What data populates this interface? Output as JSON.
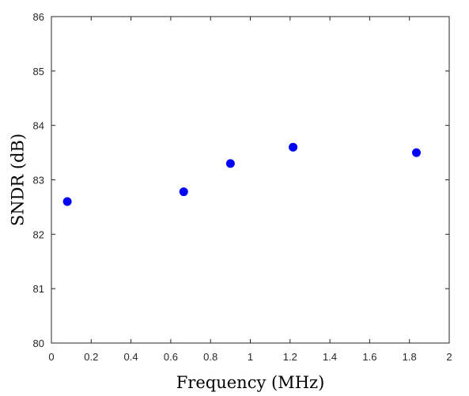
{
  "chart_data": {
    "type": "scatter",
    "title": "",
    "xlabel": "Frequency (MHz)",
    "ylabel": "SNDR (dB)",
    "xlim": [
      0,
      2
    ],
    "ylim": [
      80,
      86
    ],
    "xticks": [
      "0",
      "0.2",
      "0.4",
      "0.6",
      "0.8",
      "1",
      "1.2",
      "1.4",
      "1.6",
      "1.8",
      "2"
    ],
    "yticks": [
      "80",
      "81",
      "82",
      "83",
      "84",
      "85",
      "86"
    ],
    "grid": false,
    "marker_color": "#0000FF",
    "series": [
      {
        "x": [
          0.08,
          0.665,
          0.9,
          1.215,
          1.835
        ],
        "y": [
          82.6,
          82.78,
          83.3,
          83.6,
          83.5
        ]
      }
    ]
  }
}
